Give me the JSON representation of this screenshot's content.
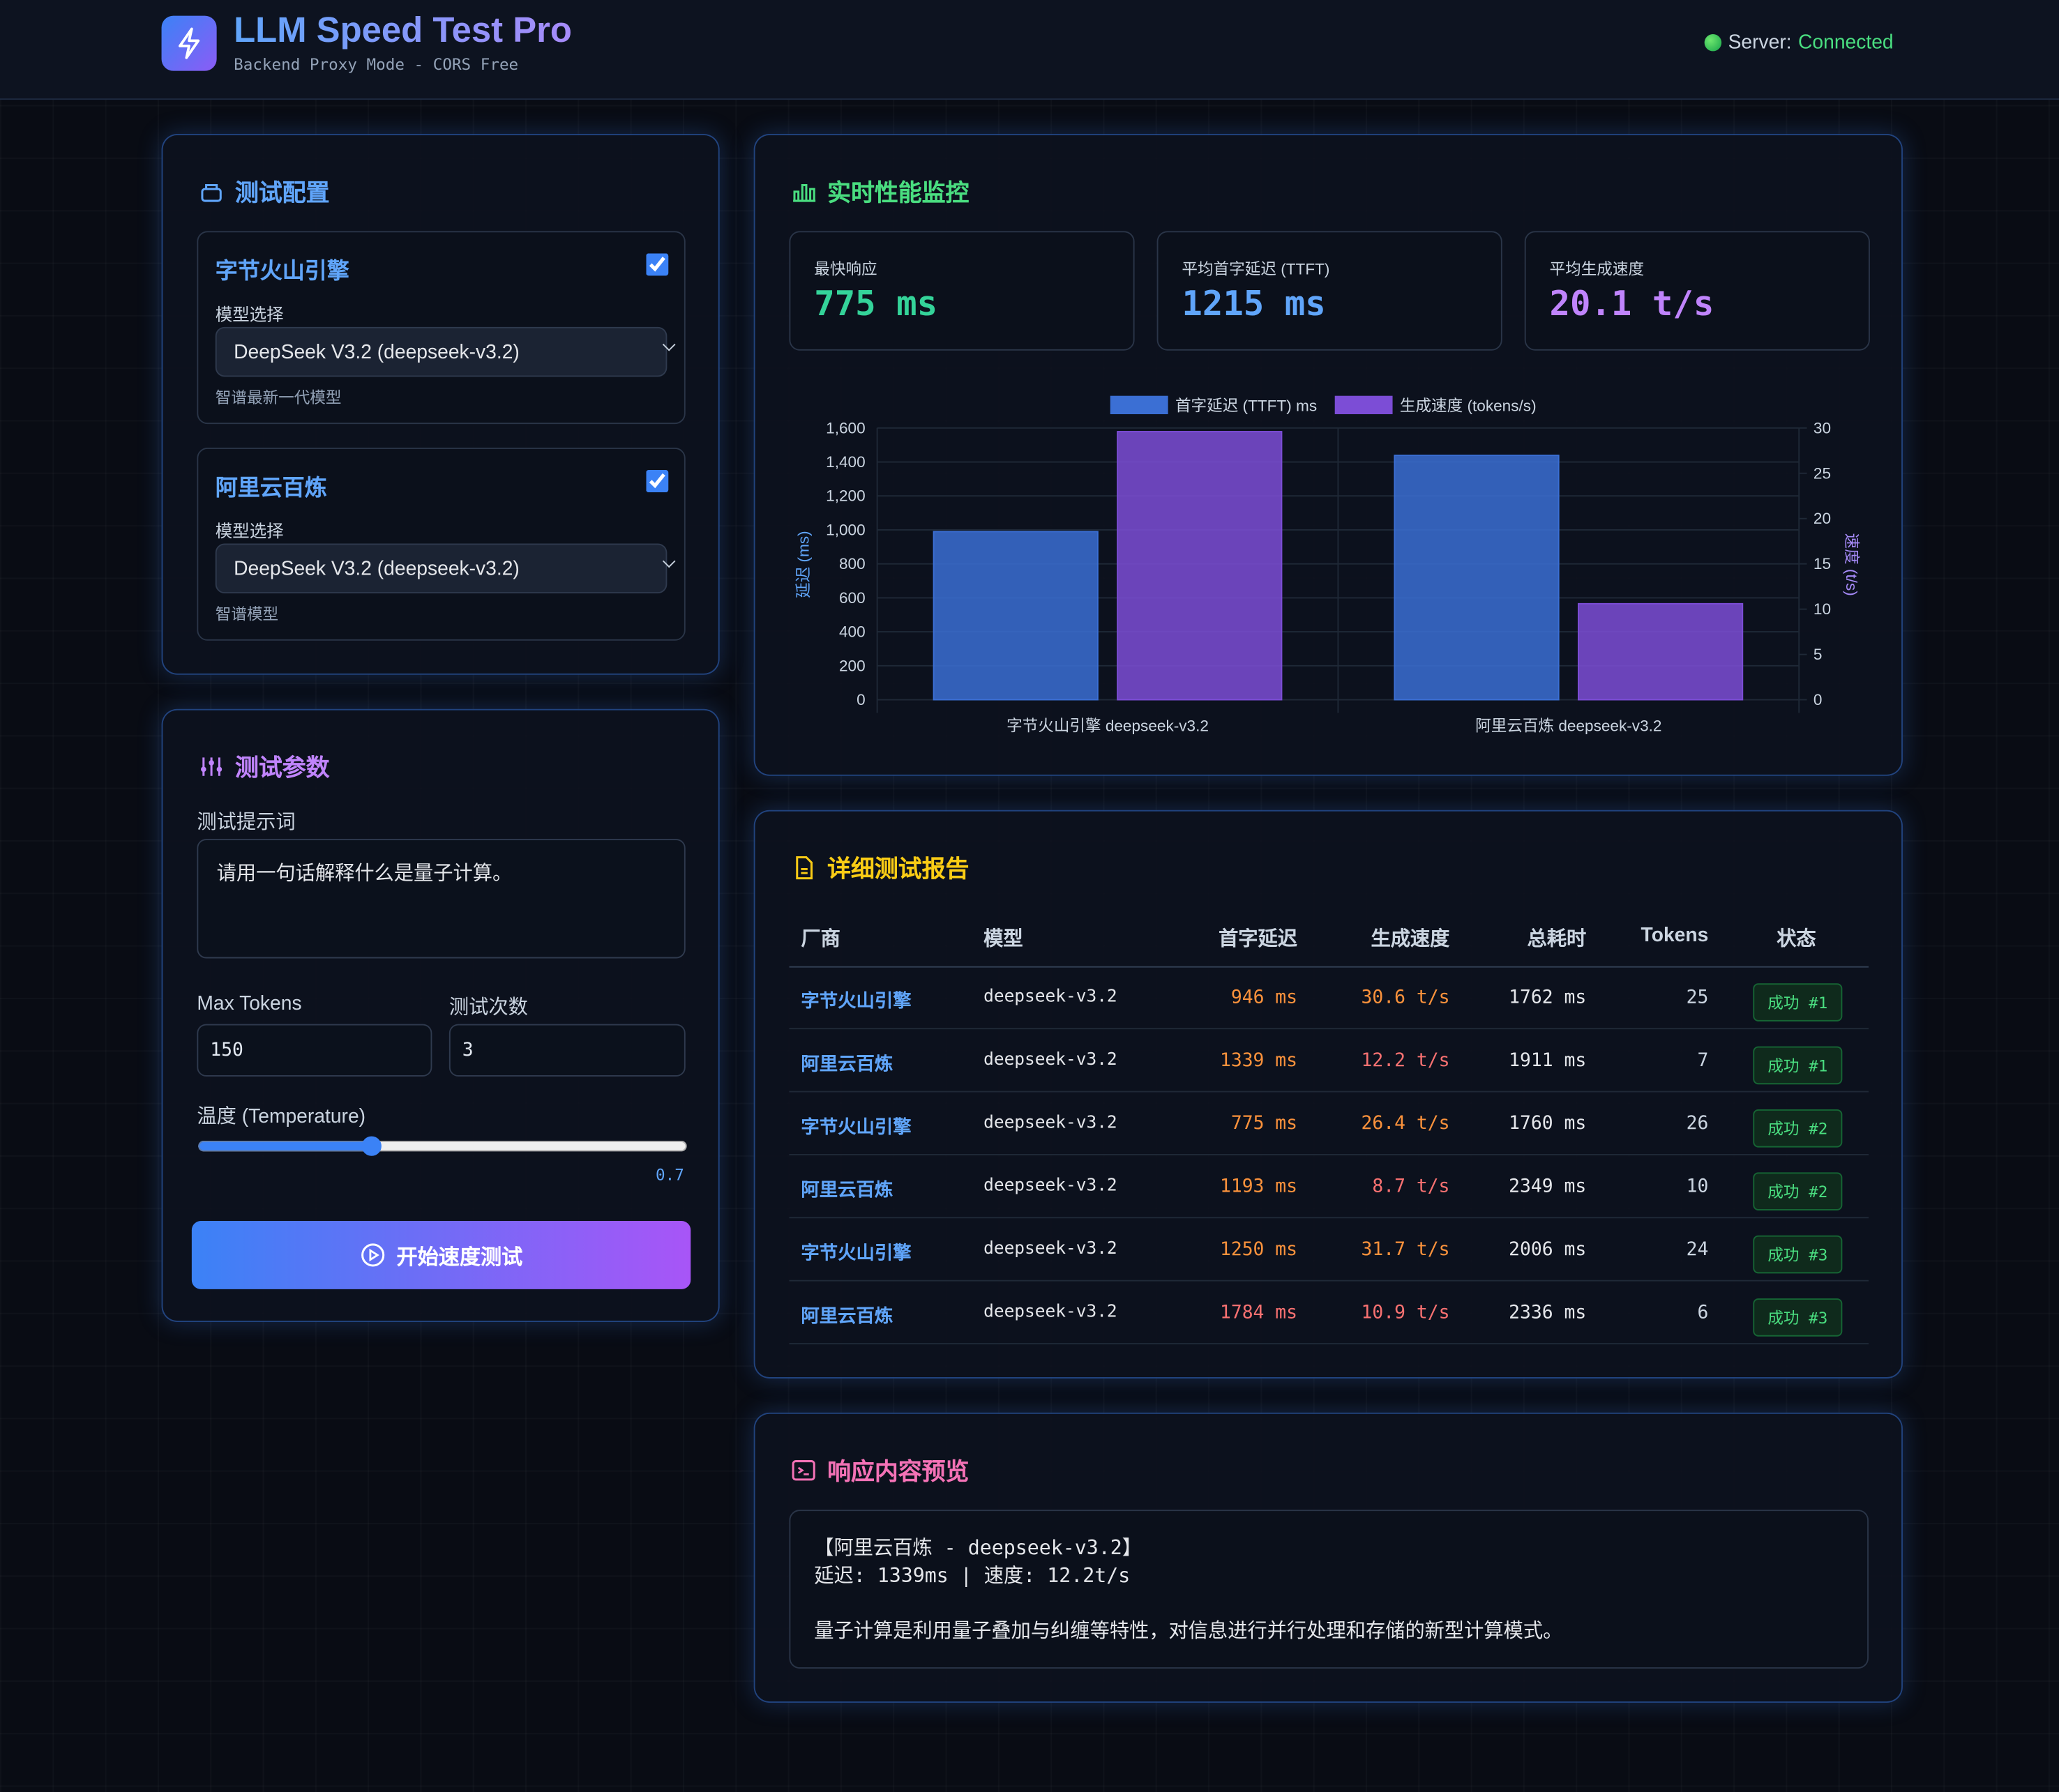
{
  "header": {
    "title": "LLM Speed Test Pro",
    "subtitle": "Backend Proxy Mode - CORS Free",
    "server_label": "Server:",
    "server_status": "Connected"
  },
  "config": {
    "title": "测试配置",
    "providers": [
      {
        "name": "字节火山引擎",
        "checked": true,
        "model_label": "模型选择",
        "model": "DeepSeek V3.2 (deepseek-v3.2)",
        "hint": "智谱最新一代模型"
      },
      {
        "name": "阿里云百炼",
        "checked": true,
        "model_label": "模型选择",
        "model": "DeepSeek V3.2 (deepseek-v3.2)",
        "hint": "智谱模型"
      }
    ]
  },
  "params": {
    "title": "测试参数",
    "prompt_label": "测试提示词",
    "prompt": "请用一句话解释什么是量子计算。",
    "max_tokens_label": "Max Tokens",
    "max_tokens": "150",
    "runs_label": "测试次数",
    "runs": "3",
    "temperature_label": "温度 (Temperature)",
    "temperature": 0.7,
    "button": "开始速度测试"
  },
  "monitor": {
    "title": "实时性能监控",
    "stats": [
      {
        "label": "最快响应",
        "value": "775 ms",
        "color": "#34d399"
      },
      {
        "label": "平均首字延迟 (TTFT)",
        "value": "1215 ms",
        "color": "#60a5fa"
      },
      {
        "label": "平均生成速度",
        "value": "20.1 t/s",
        "color": "#c084fc"
      }
    ]
  },
  "chart_data": {
    "type": "bar",
    "categories": [
      "字节火山引擎 deepseek-v3.2",
      "阿里云百炼 deepseek-v3.2"
    ],
    "series": [
      {
        "name": "首字延迟 (TTFT) ms",
        "color": "#3b6fd4",
        "values": [
          990,
          1439
        ]
      },
      {
        "name": "生成速度 (tokens/s)",
        "color": "#7c4dd6",
        "values": [
          29.6,
          10.6
        ],
        "axis": "y2"
      }
    ],
    "ylabel": "延迟 (ms)",
    "y2label": "速度 (t/s)",
    "ylim": [
      0,
      1600
    ],
    "yticks": [
      0,
      200,
      400,
      600,
      800,
      {
        "value": 1000,
        "label": "1,000"
      },
      {
        "value": 1200,
        "label": "1,200"
      },
      {
        "value": 1400,
        "label": "1,400"
      },
      {
        "value": 1600,
        "label": "1,600"
      }
    ],
    "y2lim": [
      0,
      30
    ],
    "y2ticks": [
      0,
      5,
      10,
      15,
      20,
      25,
      30
    ],
    "grid": true,
    "legend": "top"
  },
  "report": {
    "title": "详细测试报告",
    "columns": [
      "厂商",
      "模型",
      "首字延迟",
      "生成速度",
      "总耗时",
      "Tokens",
      "状态"
    ],
    "rows": [
      [
        "字节火山引擎",
        "deepseek-v3.2",
        "946 ms",
        "30.6 t/s",
        "1762 ms",
        "25",
        "成功 #1"
      ],
      [
        "阿里云百炼",
        "deepseek-v3.2",
        "1339 ms",
        "12.2 t/s",
        "1911 ms",
        "7",
        "成功 #1"
      ],
      [
        "字节火山引擎",
        "deepseek-v3.2",
        "775 ms",
        "26.4 t/s",
        "1760 ms",
        "26",
        "成功 #2"
      ],
      [
        "阿里云百炼",
        "deepseek-v3.2",
        "1193 ms",
        "8.7 t/s",
        "2349 ms",
        "10",
        "成功 #2"
      ],
      [
        "字节火山引擎",
        "deepseek-v3.2",
        "1250 ms",
        "31.7 t/s",
        "2006 ms",
        "24",
        "成功 #3"
      ],
      [
        "阿里云百炼",
        "deepseek-v3.2",
        "1784 ms",
        "10.9 t/s",
        "2336 ms",
        "6",
        "成功 #3"
      ]
    ]
  },
  "preview": {
    "title": "响应内容预览",
    "lines": [
      "【阿里云百炼 - deepseek-v3.2】",
      "延迟: 1339ms | 速度: 12.2t/s",
      "量子计算是利用量子叠加与纠缠等特性，对信息进行并行处理和存储的新型计算模式。"
    ]
  }
}
